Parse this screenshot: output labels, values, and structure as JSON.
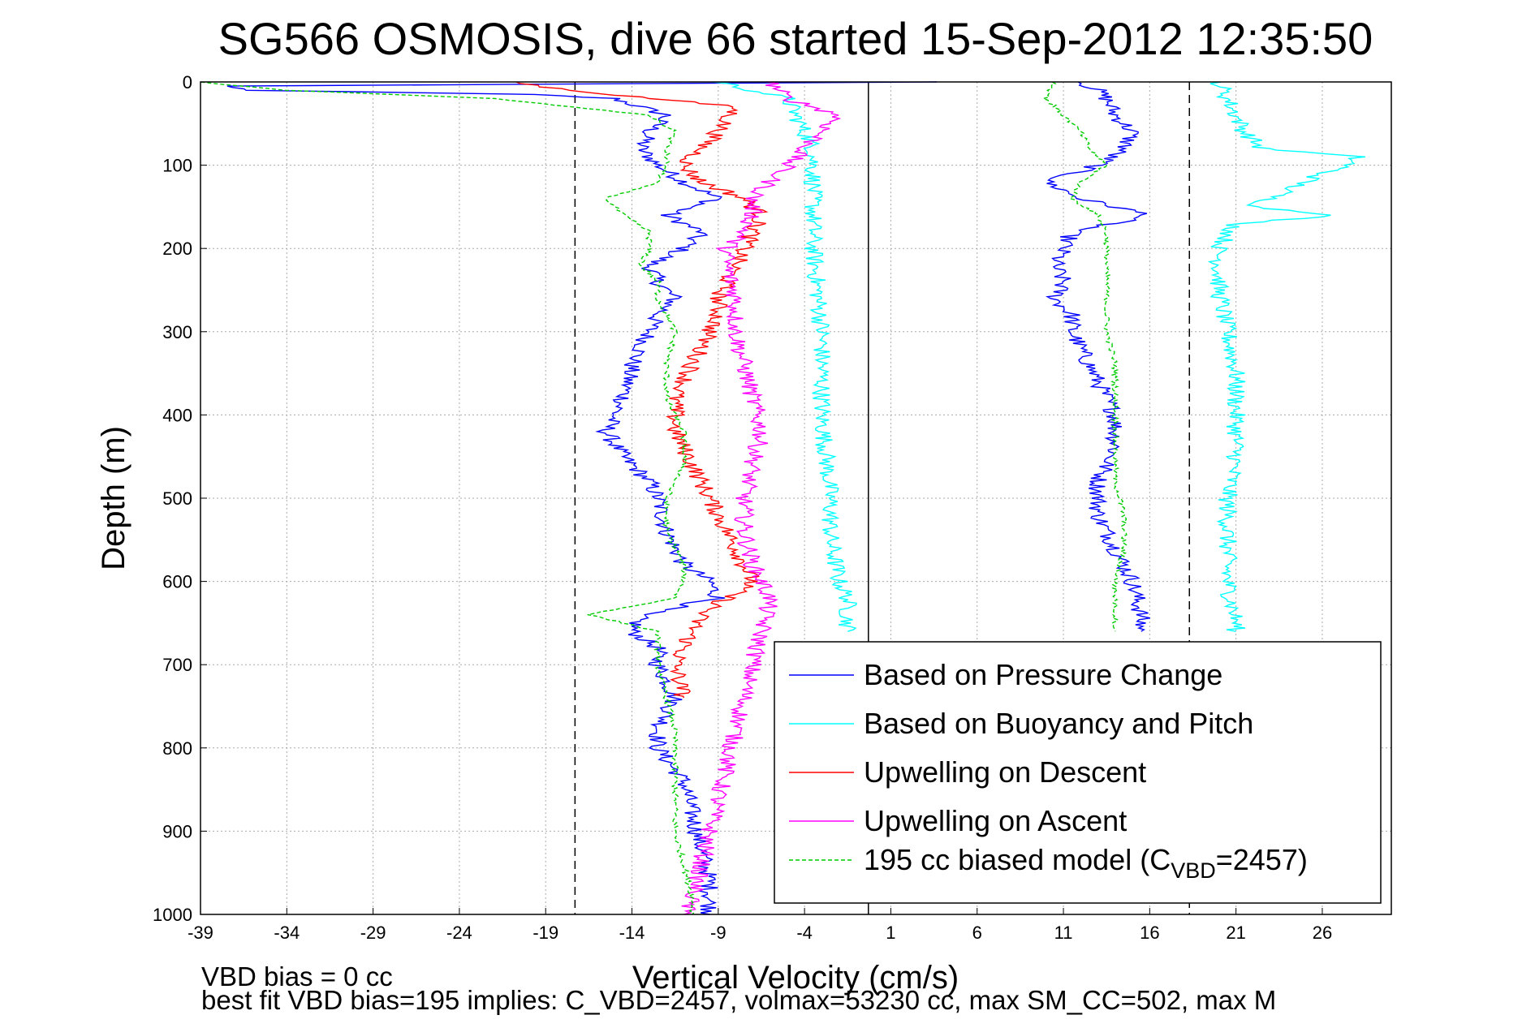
{
  "chart_data": {
    "type": "line",
    "title": "SG566 OSMOSIS, dive 66 started 15-Sep-2012 12:35:50",
    "xlabel": "Vertical Velocity (cm/s)",
    "ylabel": "Depth (m)",
    "xlim": [
      -39,
      30
    ],
    "ylim": [
      1000,
      0
    ],
    "y_reversed": true,
    "grid": true,
    "xticks": [
      -39,
      -34,
      -29,
      -24,
      -19,
      -14,
      -9,
      -4,
      1,
      6,
      11,
      16,
      21,
      26
    ],
    "yticks": [
      0,
      100,
      200,
      300,
      400,
      500,
      600,
      700,
      800,
      900,
      1000
    ],
    "reference_lines": [
      {
        "x": -17.3,
        "style": "dashed",
        "color": "#000000"
      },
      {
        "x": -0.3,
        "style": "solid",
        "color": "#000000"
      },
      {
        "x": 18.3,
        "style": "dashed",
        "color": "#000000"
      }
    ],
    "legend_position": "bottom-right",
    "series": [
      {
        "name": "Based on Pressure Change",
        "color": "#0000ff",
        "style": "solid",
        "segments": [
          {
            "y": [
              0,
              5,
              10,
              15,
              20,
              40,
              60,
              80,
              100,
              120,
              140,
              160,
              180,
              200,
              220,
              240,
              260,
              280,
              300,
              340,
              380,
              400,
              420,
              450,
              480,
              500,
              540,
              580,
              600,
              620,
              640,
              660,
              680,
              700,
              740,
              780,
              800,
              840,
              880,
              920,
              960,
              1000
            ],
            "x": [
              3.5,
              -38,
              -36,
              -20,
              -15,
              -12,
              -13,
              -13.5,
              -12.5,
              -11,
              -9,
              -12,
              -10,
              -11,
              -13,
              -12.5,
              -11.5,
              -12.5,
              -13,
              -14,
              -14.5,
              -15,
              -15.5,
              -14.5,
              -13,
              -12.5,
              -12,
              -11,
              -9.5,
              -9,
              -13.5,
              -14,
              -12.5,
              -12.5,
              -11.5,
              -12.5,
              -12.5,
              -11,
              -10.5,
              -10,
              -9.5,
              -9.5
            ]
          },
          {
            "y": [
              0,
              10,
              20,
              40,
              60,
              80,
              100,
              120,
              140,
              160,
              180,
              200,
              220,
              240,
              260,
              280,
              300,
              320,
              360,
              400,
              440,
              480,
              520,
              560,
              600,
              640,
              660
            ],
            "x": [
              12,
              13,
              13.5,
              14,
              15,
              14.5,
              13,
              10,
              12,
              16,
              11.5,
              11,
              10.5,
              11,
              10.5,
              11.5,
              11.5,
              12,
              13,
              14,
              14,
              13,
              13,
              14,
              15,
              15.5,
              15.5
            ]
          }
        ]
      },
      {
        "name": "Based on Buoyancy and Pitch",
        "color": "#00ffff",
        "style": "solid",
        "segments": [
          {
            "y": [
              0,
              20,
              40,
              60,
              80,
              100,
              150,
              200,
              300,
              400,
              500,
              550,
              600,
              620,
              660
            ],
            "x": [
              -9,
              -5,
              -4.5,
              -4,
              -3.5,
              -3.5,
              -3.5,
              -3.5,
              -3,
              -3,
              -2.5,
              -2.5,
              -2,
              -1.5,
              -1.5
            ]
          },
          {
            "y": [
              0,
              20,
              40,
              60,
              80,
              90,
              100,
              110,
              150,
              160,
              170,
              200,
              250,
              300,
              350,
              400,
              450,
              500,
              550,
              600,
              650,
              660
            ],
            "x": [
              20,
              20.5,
              21,
              21.5,
              22.5,
              28,
              27.5,
              26,
              22,
              27,
              21,
              20,
              20,
              20.5,
              21,
              21,
              21,
              20.5,
              20.5,
              20.5,
              21,
              21
            ]
          }
        ]
      },
      {
        "name": "Upwelling on Descent",
        "color": "#ff0000",
        "style": "solid",
        "segments": [
          {
            "y": [
              0,
              10,
              30,
              60,
              80,
              100,
              120,
              140,
              160,
              180,
              200,
              220,
              240,
              260,
              280,
              300,
              340,
              380,
              420,
              460,
              500,
              540,
              580,
              600,
              620,
              640,
              660,
              680,
              700,
              740
            ],
            "x": [
              -21,
              -17.5,
              -8,
              -9,
              -10,
              -11,
              -10,
              -7.5,
              -6.5,
              -7,
              -7.5,
              -8,
              -8.5,
              -9,
              -9,
              -9.5,
              -10.5,
              -11.5,
              -11.5,
              -10.5,
              -9.5,
              -8.5,
              -7.5,
              -7,
              -8.5,
              -10,
              -10.5,
              -11,
              -11.5,
              -11
            ]
          }
        ]
      },
      {
        "name": "Upwelling on Ascent",
        "color": "#ff00ff",
        "style": "solid",
        "segments": [
          {
            "y": [
              0,
              20,
              40,
              60,
              80,
              100,
              120,
              140,
              160,
              180,
              200,
              220,
              260,
              300,
              340,
              380,
              420,
              460,
              500,
              540,
              580,
              620,
              660,
              700,
              740,
              780,
              820,
              860,
              900,
              940,
              980,
              1000
            ],
            "x": [
              -6,
              -5,
              -2,
              -3,
              -4,
              -5,
              -6,
              -7,
              -7,
              -7.5,
              -8.5,
              -8.5,
              -8,
              -8,
              -7.5,
              -7,
              -6.5,
              -7,
              -7.5,
              -7.5,
              -7,
              -6,
              -6.5,
              -7,
              -7.5,
              -8,
              -8.5,
              -9,
              -9.5,
              -10,
              -10.5,
              -11
            ]
          }
        ]
      },
      {
        "name": "195 cc biased model (C",
        "name_sub": "VBD",
        "name_suffix": "=2457)",
        "color": "#00cc00",
        "style": "dashed",
        "segments": [
          {
            "y": [
              0,
              10,
              20,
              40,
              60,
              80,
              100,
              120,
              140,
              160,
              180,
              200,
              220,
              240,
              260,
              280,
              300,
              340,
              380,
              420,
              460,
              500,
              540,
              580,
              600,
              620,
              640,
              660,
              700,
              740,
              780,
              820,
              860,
              900,
              940,
              980,
              1000
            ],
            "x": [
              -39,
              -34,
              -22,
              -13,
              -11.5,
              -12,
              -12,
              -12.5,
              -15.5,
              -14.5,
              -13,
              -13,
              -13.5,
              -12.5,
              -12.5,
              -12,
              -11.5,
              -12,
              -12,
              -11,
              -11,
              -12,
              -12,
              -11,
              -11,
              -11.5,
              -16.5,
              -12.5,
              -12.5,
              -12,
              -11.5,
              -11.5,
              -11.5,
              -11.5,
              -11,
              -10.5,
              -10.5
            ]
          },
          {
            "y": [
              0,
              20,
              40,
              60,
              80,
              100,
              120,
              140,
              160,
              180,
              200,
              260,
              300,
              340,
              400,
              440,
              480,
              520,
              560,
              600,
              640,
              660
            ],
            "x": [
              10.5,
              10,
              11,
              12,
              12.5,
              13.5,
              12,
              11.5,
              13,
              13.5,
              13.5,
              13.5,
              13.5,
              14,
              14,
              14,
              14,
              14.5,
              14.5,
              14,
              14,
              14
            ]
          }
        ]
      }
    ]
  },
  "footer": {
    "line1": "VBD bias = 0 cc",
    "line2": "best fit VBD bias=195 implies: C_VBD=2457, volmax=53230 cc, max SM_CC=502, max M"
  }
}
